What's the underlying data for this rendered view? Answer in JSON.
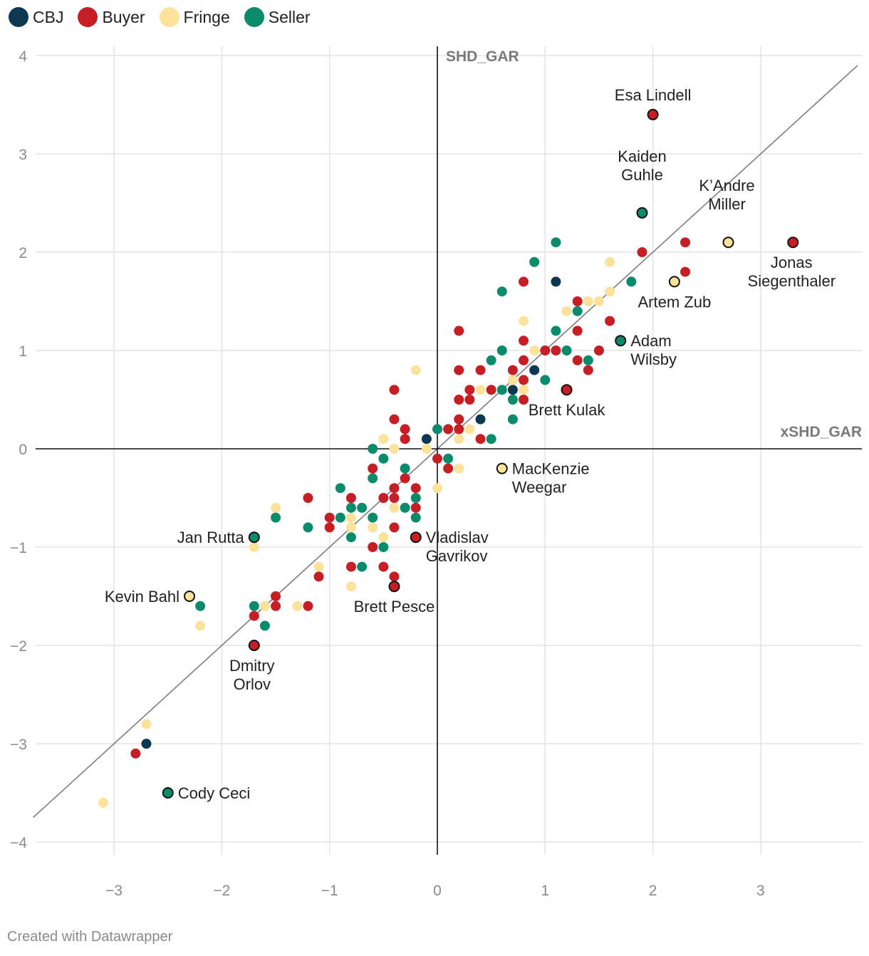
{
  "legend": [
    {
      "key": "CBJ",
      "label": "CBJ",
      "color": "#0e3752"
    },
    {
      "key": "Buyer",
      "label": "Buyer",
      "color": "#c61e25"
    },
    {
      "key": "Fringe",
      "label": "Fringe",
      "color": "#fde29b"
    },
    {
      "key": "Seller",
      "label": "Seller",
      "color": "#0a8c6c"
    }
  ],
  "footer": "Created with Datawrapper",
  "chart_data": {
    "type": "scatter",
    "xlabel": "xSHD_GAR",
    "ylabel": "SHD_GAR",
    "xlim": [
      -3.8,
      3.9
    ],
    "ylim": [
      -4.2,
      4.1
    ],
    "xticks": [
      -3,
      -2,
      -1,
      0,
      1,
      2,
      3
    ],
    "yticks": [
      -4,
      -3,
      -2,
      -1,
      0,
      1,
      2,
      3,
      4
    ],
    "x_tick_labels": [
      "−3",
      "−2",
      "−1",
      "0",
      "1",
      "2",
      "3"
    ],
    "y_tick_labels": [
      "−4",
      "−3",
      "−2",
      "−1",
      "0",
      "1",
      "2",
      "3",
      "4"
    ],
    "reference_line": "y = x",
    "grid": true,
    "series": [
      {
        "name": "CBJ",
        "points": [
          [
            -0.1,
            0.1
          ],
          [
            0.4,
            0.3
          ],
          [
            0.7,
            0.6
          ],
          [
            0.9,
            0.8
          ],
          [
            1.1,
            1.7
          ],
          [
            -2.7,
            -3.0
          ]
        ]
      },
      {
        "name": "Buyer",
        "points": [
          [
            0.2,
            1.2
          ],
          [
            0.8,
            1.7
          ],
          [
            1.3,
            1.5
          ],
          [
            1.3,
            1.2
          ],
          [
            1.6,
            1.3
          ],
          [
            1.9,
            2.0
          ],
          [
            2.3,
            2.1
          ],
          [
            2.3,
            1.8
          ],
          [
            0.8,
            1.1
          ],
          [
            1.0,
            1.0
          ],
          [
            1.1,
            1.0
          ],
          [
            1.3,
            0.9
          ],
          [
            1.4,
            0.8
          ],
          [
            1.5,
            1.0
          ],
          [
            0.8,
            0.9
          ],
          [
            0.7,
            0.8
          ],
          [
            0.8,
            0.7
          ],
          [
            0.8,
            0.5
          ],
          [
            0.2,
            0.8
          ],
          [
            0.4,
            0.8
          ],
          [
            0.3,
            0.6
          ],
          [
            0.5,
            0.6
          ],
          [
            0.2,
            0.5
          ],
          [
            0.3,
            0.5
          ],
          [
            0.2,
            0.3
          ],
          [
            0.1,
            0.2
          ],
          [
            0.2,
            0.2
          ],
          [
            0.4,
            0.1
          ],
          [
            -0.4,
            0.6
          ],
          [
            -0.4,
            0.3
          ],
          [
            -0.3,
            0.2
          ],
          [
            -0.3,
            0.1
          ],
          [
            0.0,
            -0.1
          ],
          [
            0.1,
            -0.2
          ],
          [
            -0.6,
            -0.2
          ],
          [
            -0.3,
            -0.3
          ],
          [
            -0.4,
            -0.4
          ],
          [
            -0.2,
            -0.4
          ],
          [
            -0.5,
            -0.5
          ],
          [
            -0.4,
            -0.5
          ],
          [
            -0.8,
            -0.5
          ],
          [
            -0.2,
            -0.6
          ],
          [
            -1.2,
            -0.5
          ],
          [
            -1.0,
            -0.7
          ],
          [
            -1.0,
            -0.8
          ],
          [
            -0.4,
            -0.8
          ],
          [
            -0.6,
            -1.0
          ],
          [
            -0.8,
            -1.2
          ],
          [
            -0.5,
            -1.2
          ],
          [
            -1.1,
            -1.3
          ],
          [
            -0.4,
            -1.3
          ],
          [
            -1.5,
            -1.5
          ],
          [
            -1.5,
            -1.6
          ],
          [
            -1.2,
            -1.6
          ],
          [
            -1.7,
            -1.7
          ],
          [
            -2.8,
            -3.1
          ]
        ]
      },
      {
        "name": "Fringe",
        "points": [
          [
            1.6,
            1.9
          ],
          [
            1.4,
            1.5
          ],
          [
            1.5,
            1.5
          ],
          [
            1.6,
            1.6
          ],
          [
            1.2,
            1.4
          ],
          [
            0.8,
            1.3
          ],
          [
            0.9,
            1.0
          ],
          [
            0.7,
            0.7
          ],
          [
            0.8,
            0.6
          ],
          [
            0.4,
            0.6
          ],
          [
            -0.2,
            0.8
          ],
          [
            0.3,
            0.2
          ],
          [
            0.2,
            0.1
          ],
          [
            -0.5,
            0.1
          ],
          [
            -0.4,
            0.0
          ],
          [
            -0.1,
            0.0
          ],
          [
            0.2,
            -0.2
          ],
          [
            0.0,
            -0.4
          ],
          [
            -0.4,
            -0.6
          ],
          [
            -1.5,
            -0.6
          ],
          [
            -0.8,
            -0.7
          ],
          [
            -0.8,
            -0.8
          ],
          [
            -0.6,
            -0.8
          ],
          [
            -0.5,
            -0.9
          ],
          [
            -1.7,
            -1.0
          ],
          [
            -1.1,
            -1.2
          ],
          [
            -0.8,
            -1.4
          ],
          [
            -1.6,
            -1.6
          ],
          [
            -1.3,
            -1.6
          ],
          [
            -2.2,
            -1.8
          ],
          [
            -2.7,
            -2.8
          ],
          [
            -3.1,
            -3.6
          ]
        ]
      },
      {
        "name": "Seller",
        "points": [
          [
            1.1,
            2.1
          ],
          [
            0.9,
            1.9
          ],
          [
            1.8,
            1.7
          ],
          [
            0.6,
            1.6
          ],
          [
            1.3,
            1.4
          ],
          [
            1.1,
            1.2
          ],
          [
            0.6,
            1.0
          ],
          [
            1.2,
            1.0
          ],
          [
            0.5,
            0.9
          ],
          [
            1.4,
            0.9
          ],
          [
            1.0,
            0.7
          ],
          [
            0.6,
            0.6
          ],
          [
            0.7,
            0.5
          ],
          [
            0.7,
            0.3
          ],
          [
            0.0,
            0.2
          ],
          [
            0.5,
            0.1
          ],
          [
            -0.6,
            0.0
          ],
          [
            -0.5,
            -0.1
          ],
          [
            0.1,
            -0.1
          ],
          [
            -0.3,
            -0.2
          ],
          [
            -0.6,
            -0.3
          ],
          [
            -0.9,
            -0.4
          ],
          [
            -0.2,
            -0.5
          ],
          [
            -0.8,
            -0.6
          ],
          [
            -0.7,
            -0.6
          ],
          [
            -0.3,
            -0.6
          ],
          [
            -0.2,
            -0.7
          ],
          [
            -1.5,
            -0.7
          ],
          [
            -0.9,
            -0.7
          ],
          [
            -0.6,
            -0.7
          ],
          [
            -1.2,
            -0.8
          ],
          [
            -0.8,
            -0.9
          ],
          [
            -0.5,
            -1.0
          ],
          [
            -0.7,
            -1.2
          ],
          [
            -1.7,
            -1.6
          ],
          [
            -2.2,
            -1.6
          ],
          [
            -1.6,
            -1.8
          ]
        ]
      }
    ],
    "annotated_players": [
      {
        "name": "Esa Lindell",
        "lines": [
          "Esa Lindell"
        ],
        "group": "Buyer",
        "x": 2.0,
        "y": 3.4
      },
      {
        "name": "Kaiden Guhle",
        "lines": [
          "Kaiden",
          "Guhle"
        ],
        "group": "Seller",
        "x": 1.9,
        "y": 2.4
      },
      {
        "name": "K'Andre Miller",
        "lines": [
          "K’Andre",
          "Miller"
        ],
        "group": "Fringe",
        "x": 2.7,
        "y": 2.1
      },
      {
        "name": "Jonas Siegenthaler",
        "lines": [
          "Jonas",
          "Siegenthaler"
        ],
        "group": "Buyer",
        "x": 3.3,
        "y": 2.1
      },
      {
        "name": "Artem Zub",
        "lines": [
          "Artem Zub"
        ],
        "group": "Fringe",
        "x": 2.2,
        "y": 1.7
      },
      {
        "name": "Adam Wilsby",
        "lines": [
          "Adam",
          "Wilsby"
        ],
        "group": "Seller",
        "x": 1.7,
        "y": 1.1
      },
      {
        "name": "Brett Kulak",
        "lines": [
          "Brett Kulak"
        ],
        "group": "Buyer",
        "x": 1.2,
        "y": 0.6
      },
      {
        "name": "MacKenzie Weegar",
        "lines": [
          "MacKenzie",
          "Weegar"
        ],
        "group": "Fringe",
        "x": 0.6,
        "y": -0.2
      },
      {
        "name": "Jan Rutta",
        "lines": [
          "Jan Rutta"
        ],
        "group": "Seller",
        "x": -1.7,
        "y": -0.9
      },
      {
        "name": "Vladislav Gavrikov",
        "lines": [
          "Vladislav",
          "Gavrikov"
        ],
        "group": "Buyer",
        "x": -0.2,
        "y": -0.9
      },
      {
        "name": "Kevin Bahl",
        "lines": [
          "Kevin Bahl"
        ],
        "group": "Fringe",
        "x": -2.3,
        "y": -1.5
      },
      {
        "name": "Brett Pesce",
        "lines": [
          "Brett Pesce"
        ],
        "group": "Buyer",
        "x": -0.4,
        "y": -1.4
      },
      {
        "name": "Dmitry Orlov",
        "lines": [
          "Dmitry",
          "Orlov"
        ],
        "group": "Buyer",
        "x": -1.7,
        "y": -2.0
      },
      {
        "name": "Cody Ceci",
        "lines": [
          "Cody Ceci"
        ],
        "group": "Seller",
        "x": -2.5,
        "y": -3.5
      }
    ]
  }
}
